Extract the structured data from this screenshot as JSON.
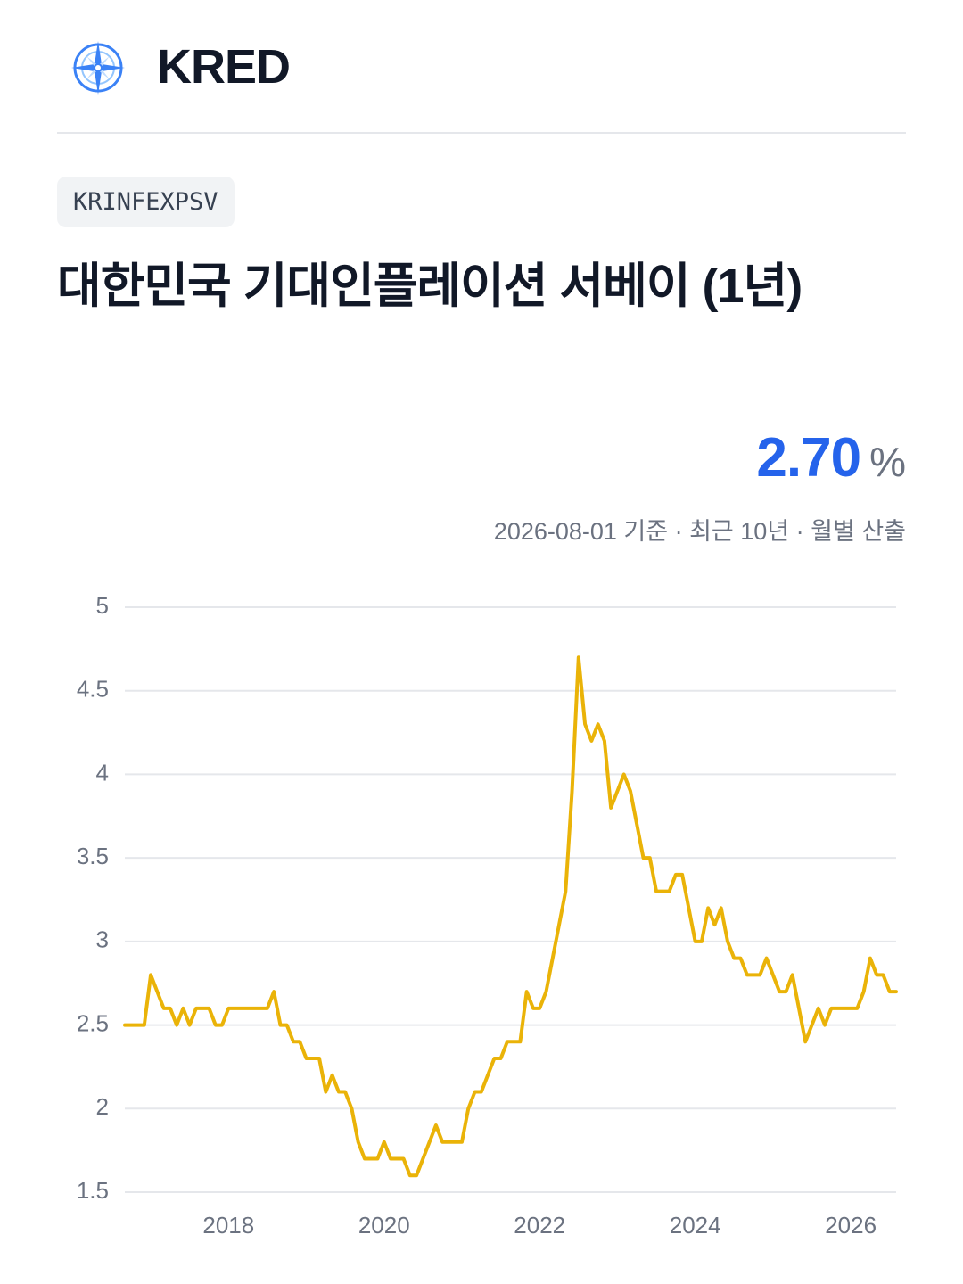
{
  "header": {
    "brand": "KRED"
  },
  "badge": "KRINFEXPSV",
  "title": "대한민국 기대인플레이션 서베이 (1년)",
  "latest": {
    "value": "2.70",
    "unit": "%"
  },
  "subtitle": "2026-08-01 기준 · 최근 10년 · 월별 산출",
  "chart_data": {
    "type": "line",
    "x": [
      "2016-09",
      "2016-10",
      "2016-11",
      "2016-12",
      "2017-01",
      "2017-02",
      "2017-03",
      "2017-04",
      "2017-05",
      "2017-06",
      "2017-07",
      "2017-08",
      "2017-09",
      "2017-10",
      "2017-11",
      "2017-12",
      "2018-01",
      "2018-02",
      "2018-03",
      "2018-04",
      "2018-05",
      "2018-06",
      "2018-07",
      "2018-08",
      "2018-09",
      "2018-10",
      "2018-11",
      "2018-12",
      "2019-01",
      "2019-02",
      "2019-03",
      "2019-04",
      "2019-05",
      "2019-06",
      "2019-07",
      "2019-08",
      "2019-09",
      "2019-10",
      "2019-11",
      "2019-12",
      "2020-01",
      "2020-02",
      "2020-03",
      "2020-04",
      "2020-05",
      "2020-06",
      "2020-07",
      "2020-08",
      "2020-09",
      "2020-10",
      "2020-11",
      "2020-12",
      "2021-01",
      "2021-02",
      "2021-03",
      "2021-04",
      "2021-05",
      "2021-06",
      "2021-07",
      "2021-08",
      "2021-09",
      "2021-10",
      "2021-11",
      "2021-12",
      "2022-01",
      "2022-02",
      "2022-03",
      "2022-04",
      "2022-05",
      "2022-06",
      "2022-07",
      "2022-08",
      "2022-09",
      "2022-10",
      "2022-11",
      "2022-12",
      "2023-01",
      "2023-02",
      "2023-03",
      "2023-04",
      "2023-05",
      "2023-06",
      "2023-07",
      "2023-08",
      "2023-09",
      "2023-10",
      "2023-11",
      "2023-12",
      "2024-01",
      "2024-02",
      "2024-03",
      "2024-04",
      "2024-05",
      "2024-06",
      "2024-07",
      "2024-08",
      "2024-09",
      "2024-10",
      "2024-11",
      "2024-12",
      "2025-01",
      "2025-02",
      "2025-03",
      "2025-04",
      "2025-05",
      "2025-06",
      "2025-07",
      "2025-08",
      "2025-09",
      "2025-10",
      "2025-11",
      "2025-12",
      "2026-01",
      "2026-02",
      "2026-03",
      "2026-04",
      "2026-05",
      "2026-06",
      "2026-07",
      "2026-08"
    ],
    "values": [
      2.5,
      2.5,
      2.5,
      2.5,
      2.8,
      2.7,
      2.6,
      2.6,
      2.5,
      2.6,
      2.5,
      2.6,
      2.6,
      2.6,
      2.5,
      2.5,
      2.6,
      2.6,
      2.6,
      2.6,
      2.6,
      2.6,
      2.6,
      2.7,
      2.5,
      2.5,
      2.4,
      2.4,
      2.3,
      2.3,
      2.3,
      2.1,
      2.2,
      2.1,
      2.1,
      2.0,
      1.8,
      1.7,
      1.7,
      1.7,
      1.8,
      1.7,
      1.7,
      1.7,
      1.6,
      1.6,
      1.7,
      1.8,
      1.9,
      1.8,
      1.8,
      1.8,
      1.8,
      2.0,
      2.1,
      2.1,
      2.2,
      2.3,
      2.3,
      2.4,
      2.4,
      2.4,
      2.7,
      2.6,
      2.6,
      2.7,
      2.9,
      3.1,
      3.3,
      3.9,
      4.7,
      4.3,
      4.2,
      4.3,
      4.2,
      3.8,
      3.9,
      4.0,
      3.9,
      3.7,
      3.5,
      3.5,
      3.3,
      3.3,
      3.3,
      3.4,
      3.4,
      3.2,
      3.0,
      3.0,
      3.2,
      3.1,
      3.2,
      3.0,
      2.9,
      2.9,
      2.8,
      2.8,
      2.8,
      2.9,
      2.8,
      2.7,
      2.7,
      2.8,
      2.6,
      2.4,
      2.5,
      2.6,
      2.5,
      2.6,
      2.6,
      2.6,
      2.6,
      2.6,
      2.7,
      2.9,
      2.8,
      2.8,
      2.7,
      2.7
    ],
    "color": "#eab308",
    "xlim": [
      "2016-09",
      "2026-08"
    ],
    "xticks": [
      2018,
      2020,
      2022,
      2024,
      2026
    ],
    "ylim": [
      1.5,
      5
    ],
    "yticks": [
      1.5,
      2,
      2.5,
      3,
      3.5,
      4,
      4.5,
      5
    ],
    "grid": true
  }
}
